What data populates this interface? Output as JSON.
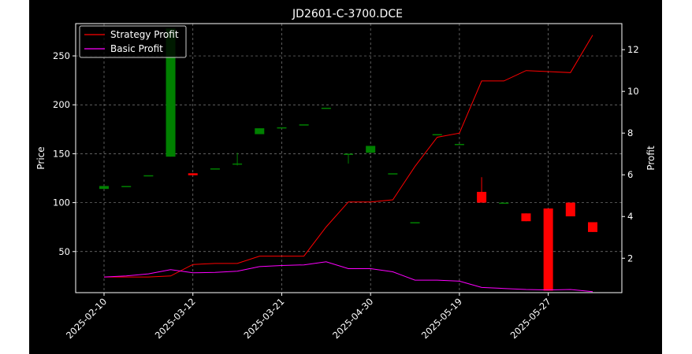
{
  "chart_data": {
    "type": "candlestick+line",
    "title": "JD2601-C-3700.DCE",
    "xlabel": "",
    "ylabel_left": "Price",
    "ylabel_right": "Profit",
    "x_tick_labels": [
      "2025-02-10",
      "2025-03-12",
      "2025-03-21",
      "2025-04-30",
      "2025-05-19",
      "2025-05-27"
    ],
    "x_tick_index": [
      0,
      4,
      8,
      12,
      16,
      20
    ],
    "y_left_ticks": [
      50,
      100,
      150,
      200,
      250
    ],
    "y_left_range": [
      8,
      283
    ],
    "y_right_ticks": [
      2,
      4,
      6,
      8,
      10,
      12
    ],
    "y_right_range": [
      0.35,
      13.25
    ],
    "grid": true,
    "legend_position": "upper-left",
    "candles": [
      {
        "o": 114,
        "c": 117,
        "h": 117,
        "l": 114
      },
      {
        "o": 117,
        "c": 117,
        "h": 117,
        "l": 117
      },
      {
        "o": 128,
        "c": 128,
        "h": 128,
        "l": 128
      },
      {
        "o": 147,
        "c": 278,
        "h": 278,
        "l": 147
      },
      {
        "o": 130,
        "c": 128,
        "h": 130,
        "l": 128
      },
      {
        "o": 135,
        "c": 135,
        "h": 135,
        "l": 135
      },
      {
        "o": 140,
        "c": 140,
        "h": 151,
        "l": 138
      },
      {
        "o": 170,
        "c": 176,
        "h": 176,
        "l": 170
      },
      {
        "o": 177,
        "c": 177,
        "h": 177,
        "l": 177
      },
      {
        "o": 180,
        "c": 180,
        "h": 180,
        "l": 180
      },
      {
        "o": 197,
        "c": 197,
        "h": 197,
        "l": 197
      },
      {
        "o": 150,
        "c": 150,
        "h": 150,
        "l": 140
      },
      {
        "o": 151,
        "c": 158,
        "h": 158,
        "l": 151
      },
      {
        "o": 130,
        "c": 130,
        "h": 130,
        "l": 130
      },
      {
        "o": 80,
        "c": 80,
        "h": 80,
        "l": 80
      },
      {
        "o": 170,
        "c": 170,
        "h": 170,
        "l": 170
      },
      {
        "o": 160,
        "c": 160,
        "h": 160,
        "l": 160
      },
      {
        "o": 111,
        "c": 100,
        "h": 126,
        "l": 100
      },
      {
        "o": 100,
        "c": 100,
        "h": 100,
        "l": 100
      },
      {
        "o": 89,
        "c": 81,
        "h": 89,
        "l": 81
      },
      {
        "o": 94,
        "c": 10,
        "h": 94,
        "l": 10
      },
      {
        "o": 100,
        "c": 86,
        "h": 100,
        "l": 86
      },
      {
        "o": 80,
        "c": 70,
        "h": 80,
        "l": 70
      }
    ],
    "series": [
      {
        "name": "Strategy Profit",
        "color": "#ff0000",
        "values": [
          1.1,
          1.1,
          1.1,
          1.15,
          1.7,
          1.75,
          1.75,
          2.1,
          2.1,
          2.1,
          3.5,
          4.7,
          4.7,
          4.8,
          6.4,
          7.8,
          8.0,
          10.5,
          10.5,
          11.0,
          10.95,
          10.9,
          12.7
        ]
      },
      {
        "name": "Basic Profit",
        "color": "#ff00ff",
        "values": [
          1.1,
          1.15,
          1.25,
          1.45,
          1.3,
          1.32,
          1.38,
          1.6,
          1.65,
          1.68,
          1.83,
          1.5,
          1.5,
          1.35,
          0.95,
          0.95,
          0.9,
          0.6,
          0.55,
          0.5,
          0.48,
          0.5,
          0.4
        ]
      }
    ]
  },
  "colors": {
    "background": "#000000",
    "frame": "#ffffff",
    "up_candle": "#008000",
    "down_candle": "#ff0000",
    "grid": "#808080"
  }
}
